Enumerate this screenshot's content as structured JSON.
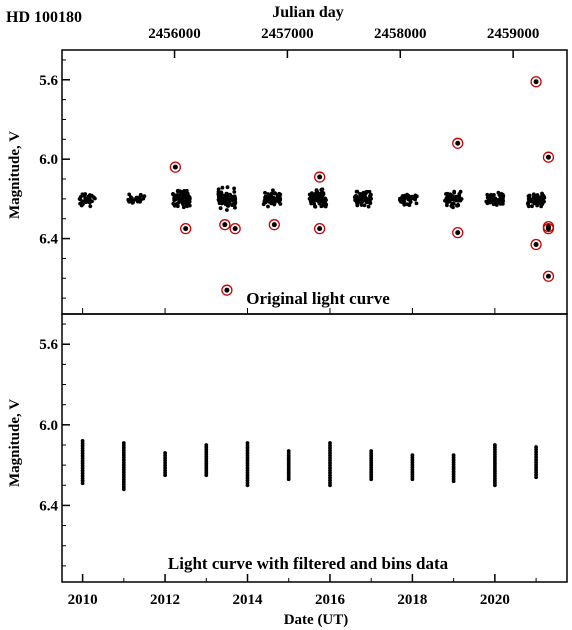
{
  "chart_data": [
    {
      "type": "scatter",
      "title": "HD  100180",
      "top_axis_label": "Julian day",
      "top_ticks": [
        "2456000",
        "2457000",
        "2458000",
        "2459000"
      ],
      "ylabel": "Magnitude, V",
      "yticks": [
        "5.6",
        "6.0",
        "6.4"
      ],
      "ylim": [
        6.78,
        5.45
      ],
      "xlim": [
        2009.5,
        2021.75
      ],
      "annotation": "Original light curve",
      "marker_color": "#000000",
      "outlier_circle_color": "#cc0000",
      "seasons": [
        {
          "year": 2010.1,
          "median": 6.2,
          "spread": 0.1,
          "n": 40
        },
        {
          "year": 2011.3,
          "median": 6.2,
          "spread": 0.06,
          "n": 30
        },
        {
          "year": 2012.4,
          "median": 6.2,
          "spread": 0.12,
          "n": 70
        },
        {
          "year": 2013.5,
          "median": 6.2,
          "spread": 0.14,
          "n": 90
        },
        {
          "year": 2014.6,
          "median": 6.2,
          "spread": 0.1,
          "n": 60
        },
        {
          "year": 2015.7,
          "median": 6.2,
          "spread": 0.12,
          "n": 90
        },
        {
          "year": 2016.8,
          "median": 6.2,
          "spread": 0.1,
          "n": 70
        },
        {
          "year": 2017.9,
          "median": 6.2,
          "spread": 0.08,
          "n": 40
        },
        {
          "year": 2019.0,
          "median": 6.2,
          "spread": 0.1,
          "n": 60
        },
        {
          "year": 2020.0,
          "median": 6.2,
          "spread": 0.1,
          "n": 60
        },
        {
          "year": 2021.0,
          "median": 6.2,
          "spread": 0.1,
          "n": 60
        }
      ],
      "outliers": [
        {
          "year": 2012.25,
          "mag": 6.04
        },
        {
          "year": 2012.5,
          "mag": 6.35
        },
        {
          "year": 2013.45,
          "mag": 6.33
        },
        {
          "year": 2013.5,
          "mag": 6.66
        },
        {
          "year": 2013.7,
          "mag": 6.35
        },
        {
          "year": 2014.65,
          "mag": 6.33
        },
        {
          "year": 2015.75,
          "mag": 6.09
        },
        {
          "year": 2015.75,
          "mag": 6.35
        },
        {
          "year": 2019.1,
          "mag": 5.92
        },
        {
          "year": 2019.1,
          "mag": 6.37
        },
        {
          "year": 2021.0,
          "mag": 5.61
        },
        {
          "year": 2021.0,
          "mag": 6.43
        },
        {
          "year": 2021.3,
          "mag": 5.99
        },
        {
          "year": 2021.3,
          "mag": 6.34
        },
        {
          "year": 2021.3,
          "mag": 6.35
        },
        {
          "year": 2021.3,
          "mag": 6.59
        }
      ]
    },
    {
      "type": "scatter",
      "xlabel": "Date (UT)",
      "ylabel": "Magnitude, V",
      "xticks": [
        "2010",
        "2012",
        "2014",
        "2016",
        "2018",
        "2020"
      ],
      "yticks": [
        "5.6",
        "6.0",
        "6.4"
      ],
      "ylim": [
        6.78,
        5.45
      ],
      "xlim": [
        2009.5,
        2021.75
      ],
      "annotation": "Light curve  with filtered and bins data",
      "marker_color": "#000000",
      "bins": [
        {
          "year": 2010.0,
          "min": 6.08,
          "max": 6.29
        },
        {
          "year": 2011.0,
          "min": 6.09,
          "max": 6.32
        },
        {
          "year": 2012.0,
          "min": 6.14,
          "max": 6.25
        },
        {
          "year": 2013.0,
          "min": 6.1,
          "max": 6.25
        },
        {
          "year": 2014.0,
          "min": 6.09,
          "max": 6.3
        },
        {
          "year": 2015.0,
          "min": 6.13,
          "max": 6.27
        },
        {
          "year": 2016.0,
          "min": 6.09,
          "max": 6.3
        },
        {
          "year": 2017.0,
          "min": 6.13,
          "max": 6.27
        },
        {
          "year": 2018.0,
          "min": 6.15,
          "max": 6.27
        },
        {
          "year": 2019.0,
          "min": 6.15,
          "max": 6.28
        },
        {
          "year": 2020.0,
          "min": 6.1,
          "max": 6.3
        },
        {
          "year": 2021.0,
          "min": 6.11,
          "max": 6.26
        }
      ]
    }
  ]
}
